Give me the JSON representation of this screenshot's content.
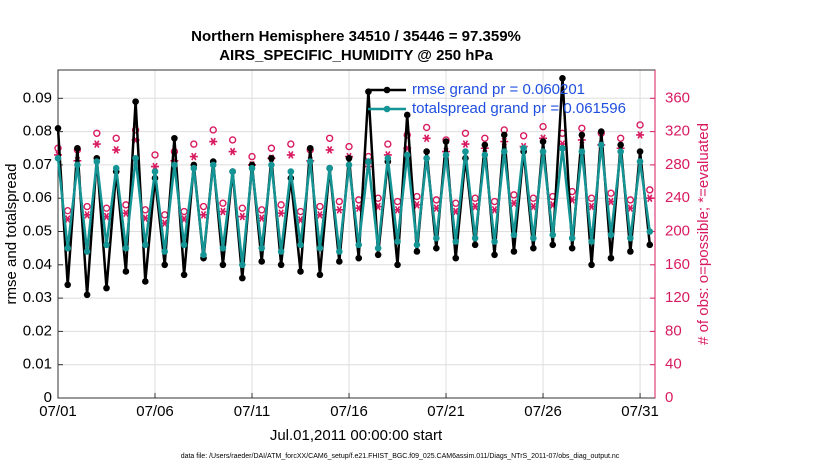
{
  "chart_data": {
    "type": "line",
    "title": "Northern Hemisphere 34510 / 35446 = 97.359%",
    "subtitle": "AIRS_SPECIFIC_HUMIDITY @ 250 hPa",
    "x_label": "Jul.01,2011 00:00:00 start",
    "y_label": "rmse and totalspread",
    "y2_label": "# of obs: o=possible; *=evaluated",
    "footnote": "data file: /Users/raeder/DAI/ATM_forcXX/CAM6_setup/f.e21.FHIST_BGC.f09_025.CAM6assim.011/Diags_NTrS_2011-07/obs_diag_output.nc",
    "grid": true,
    "legend": "top",
    "x": [
      0,
      0.5,
      1,
      1.5,
      2,
      2.5,
      3,
      3.5,
      4,
      4.5,
      5,
      5.5,
      6,
      6.5,
      7,
      7.5,
      8,
      8.5,
      9,
      9.5,
      10,
      10.5,
      11,
      11.5,
      12,
      12.5,
      13,
      13.5,
      14,
      14.5,
      15,
      15.5,
      16,
      16.5,
      17,
      17.5,
      18,
      18.5,
      19,
      19.5,
      20,
      20.5,
      21,
      21.5,
      22,
      22.5,
      23,
      23.5,
      24,
      24.5,
      25,
      25.5,
      26,
      26.5,
      27,
      27.5,
      28,
      28.5,
      29,
      29.5,
      30,
      30.5
    ],
    "xlim": [
      0,
      30.77
    ],
    "xticks": [
      {
        "value": 0,
        "label": "07/01"
      },
      {
        "value": 5,
        "label": "07/06"
      },
      {
        "value": 10,
        "label": "07/11"
      },
      {
        "value": 15,
        "label": "07/16"
      },
      {
        "value": 20,
        "label": "07/21"
      },
      {
        "value": 25,
        "label": "07/26"
      },
      {
        "value": 30,
        "label": "07/31"
      }
    ],
    "ylim": [
      0,
      0.0985
    ],
    "yticks": [
      0,
      0.01,
      0.02,
      0.03,
      0.04,
      0.05,
      0.06,
      0.07,
      0.08,
      0.09
    ],
    "y2lim": [
      0,
      394
    ],
    "y2ticks": [
      0,
      40,
      80,
      120,
      160,
      200,
      240,
      280,
      320,
      360
    ],
    "series": [
      {
        "name": "rmse grand pr = 0.060201",
        "color": "#000000",
        "marker": "dot",
        "values": [
          0.081,
          0.034,
          0.075,
          0.031,
          0.072,
          0.033,
          0.068,
          0.038,
          0.089,
          0.035,
          0.066,
          0.04,
          0.078,
          0.037,
          0.07,
          0.042,
          0.071,
          0.04,
          0.068,
          0.036,
          0.07,
          0.041,
          0.072,
          0.04,
          0.066,
          0.038,
          0.075,
          0.037,
          0.069,
          0.041,
          0.072,
          0.042,
          0.092,
          0.043,
          0.071,
          0.04,
          0.085,
          0.044,
          0.074,
          0.045,
          0.077,
          0.042,
          0.072,
          0.046,
          0.076,
          0.043,
          0.079,
          0.044,
          0.074,
          0.045,
          0.077,
          0.046,
          0.096,
          0.045,
          0.079,
          0.04,
          0.08,
          0.042,
          0.076,
          0.044,
          0.074,
          0.046
        ]
      },
      {
        "name": "totalspread grand pr = 0.061596",
        "color": "#149494",
        "marker": "dot",
        "values": [
          0.072,
          0.045,
          0.07,
          0.044,
          0.071,
          0.046,
          0.069,
          0.045,
          0.072,
          0.046,
          0.068,
          0.044,
          0.07,
          0.046,
          0.069,
          0.043,
          0.07,
          0.045,
          0.068,
          0.04,
          0.069,
          0.045,
          0.07,
          0.044,
          0.068,
          0.046,
          0.071,
          0.045,
          0.069,
          0.044,
          0.07,
          0.046,
          0.071,
          0.045,
          0.072,
          0.047,
          0.073,
          0.046,
          0.072,
          0.048,
          0.073,
          0.047,
          0.074,
          0.048,
          0.073,
          0.047,
          0.074,
          0.049,
          0.075,
          0.048,
          0.074,
          0.049,
          0.075,
          0.048,
          0.074,
          0.047,
          0.076,
          0.049,
          0.074,
          0.048,
          0.071,
          0.05
        ]
      },
      {
        "name": "possible",
        "color": "#d81b60",
        "marker": "circle",
        "axis": "y2",
        "values": [
          300,
          225,
          298,
          230,
          318,
          228,
          312,
          232,
          322,
          226,
          292,
          220,
          296,
          224,
          305,
          230,
          322,
          234,
          310,
          228,
          290,
          226,
          300,
          232,
          305,
          224,
          298,
          230,
          312,
          236,
          302,
          238,
          290,
          240,
          305,
          236,
          316,
          242,
          325,
          238,
          310,
          234,
          318,
          240,
          312,
          236,
          322,
          244,
          315,
          240,
          326,
          242,
          318,
          248,
          324,
          240,
          318,
          246,
          312,
          238,
          328,
          250
        ]
      },
      {
        "name": "evaluated",
        "color": "#d81b60",
        "marker": "star",
        "axis": "y2",
        "values": [
          292,
          215,
          285,
          220,
          305,
          218,
          298,
          222,
          310,
          216,
          278,
          210,
          285,
          215,
          290,
          220,
          308,
          224,
          296,
          218,
          280,
          216,
          288,
          222,
          292,
          214,
          285,
          220,
          298,
          226,
          290,
          228,
          278,
          230,
          292,
          226,
          300,
          232,
          312,
          228,
          296,
          224,
          305,
          230,
          300,
          226,
          308,
          234,
          302,
          230,
          312,
          232,
          305,
          238,
          310,
          230,
          304,
          236,
          300,
          228,
          316,
          240
        ]
      }
    ]
  }
}
